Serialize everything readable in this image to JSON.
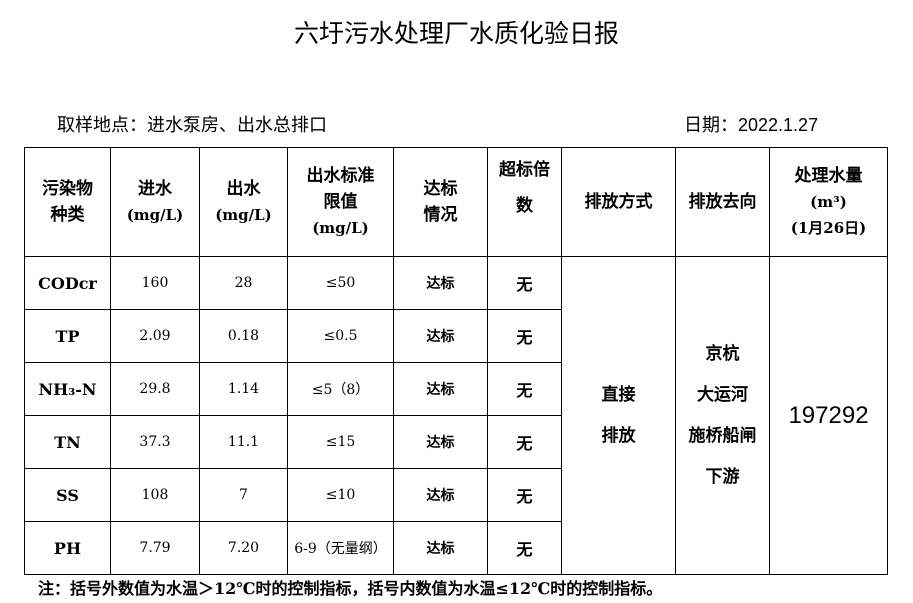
{
  "title": "六圩污水处理厂水质化验日报",
  "location": "取样地点：进水泵房、出水总排口",
  "date": "日期：2022.1.27",
  "headers": {
    "pollutant": [
      "污染物",
      "种类"
    ],
    "influent": [
      "进水",
      "(mg/L)"
    ],
    "effluent": [
      "出水",
      "(mg/L)"
    ],
    "limit": [
      "出水标准",
      "限值",
      "(mg/L)"
    ],
    "compliance": [
      "达标",
      "情况"
    ],
    "exceed": [
      "超标倍",
      "数"
    ],
    "discharge_method": "排放方式",
    "discharge_dest": "排放去向",
    "volume": [
      "处理水量",
      "(m³)",
      "(1月26日)"
    ]
  },
  "rows": [
    {
      "name": "CODcr",
      "in": "160",
      "out": "28",
      "limit": "≤50",
      "status": "达标",
      "exceed": "无"
    },
    {
      "name": "TP",
      "in": "2.09",
      "out": "0.18",
      "limit": "≤0.5",
      "status": "达标",
      "exceed": "无"
    },
    {
      "name": "NH₃-N",
      "in": "29.8",
      "out": "1.14",
      "limit": "≤5（8）",
      "status": "达标",
      "exceed": "无"
    },
    {
      "name": "TN",
      "in": "37.3",
      "out": "11.1",
      "limit": "≤15",
      "status": "达标",
      "exceed": "无"
    },
    {
      "name": "SS",
      "in": "108",
      "out": "7",
      "limit": "≤10",
      "status": "达标",
      "exceed": "无"
    },
    {
      "name": "PH",
      "in": "7.79",
      "out": "7.20",
      "limit": "6-9（无量纲）",
      "status": "达标",
      "exceed": "无"
    }
  ],
  "discharge_method": [
    "直接",
    "排放"
  ],
  "discharge_dest": [
    "京杭",
    "大运河",
    "施桥船闸",
    "下游"
  ],
  "volume": "197292",
  "note": "注：括号外数值为水温＞12℃时的控制指标，括号内数值为水温≤12℃时的控制指标。"
}
